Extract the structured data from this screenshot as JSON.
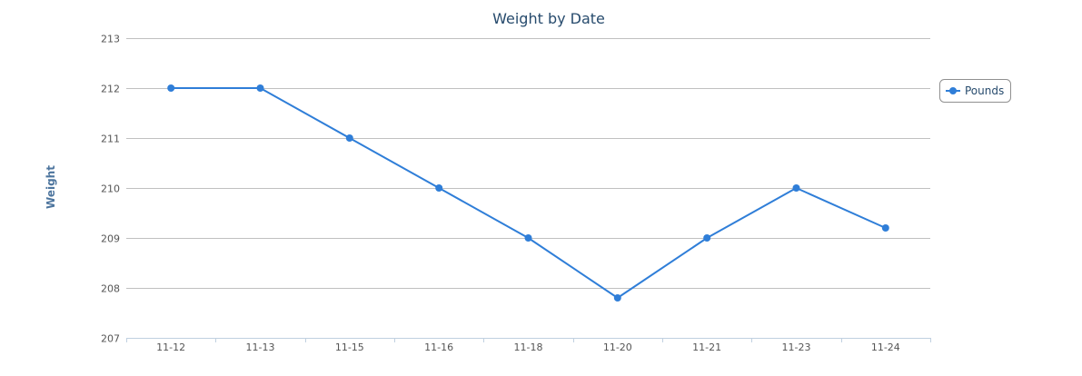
{
  "chart_data": {
    "type": "line",
    "title": "Weight by Date",
    "xlabel": "",
    "ylabel": "Weight",
    "categories": [
      "11-12",
      "11-13",
      "11-15",
      "11-16",
      "11-18",
      "11-20",
      "11-21",
      "11-23",
      "11-24"
    ],
    "series": [
      {
        "name": "Pounds",
        "values": [
          212,
          212,
          211,
          210,
          209,
          207.8,
          209,
          210,
          209.2
        ],
        "color": "#2f7ed8"
      }
    ],
    "ylim": [
      207,
      213
    ],
    "yticks": [
      "207",
      "208",
      "209",
      "210",
      "211",
      "212",
      "213"
    ],
    "grid": true,
    "legend_position": "right"
  }
}
